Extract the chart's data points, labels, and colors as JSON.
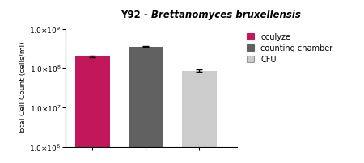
{
  "title_normal": "Y92 - ",
  "title_italic": "Brettanomyces bruxellensis",
  "ylabel": "Total Cell Count (cells/ml)",
  "bars": [
    {
      "label": "oculyze",
      "value": 200000000.0,
      "error": 10000000.0,
      "color": "#C2185B"
    },
    {
      "label": "counting chamber",
      "value": 350000000.0,
      "error": 8000000.0,
      "color": "#616161"
    },
    {
      "label": "CFU",
      "value": 85000000.0,
      "error": 6000000.0,
      "color": "#CCCCCC"
    }
  ],
  "ylim_log": [
    1000000.0,
    1000000000.0
  ],
  "yticks": [
    1000000.0,
    10000000.0,
    100000000.0,
    1000000000.0
  ],
  "background_color": "#ffffff",
  "legend_labels": [
    "oculyze",
    "counting chamber",
    "CFU"
  ],
  "legend_colors": [
    "#C2185B",
    "#616161",
    "#CCCCCC"
  ],
  "legend_edge_colors": [
    "#C2185B",
    "#616161",
    "#999999"
  ]
}
